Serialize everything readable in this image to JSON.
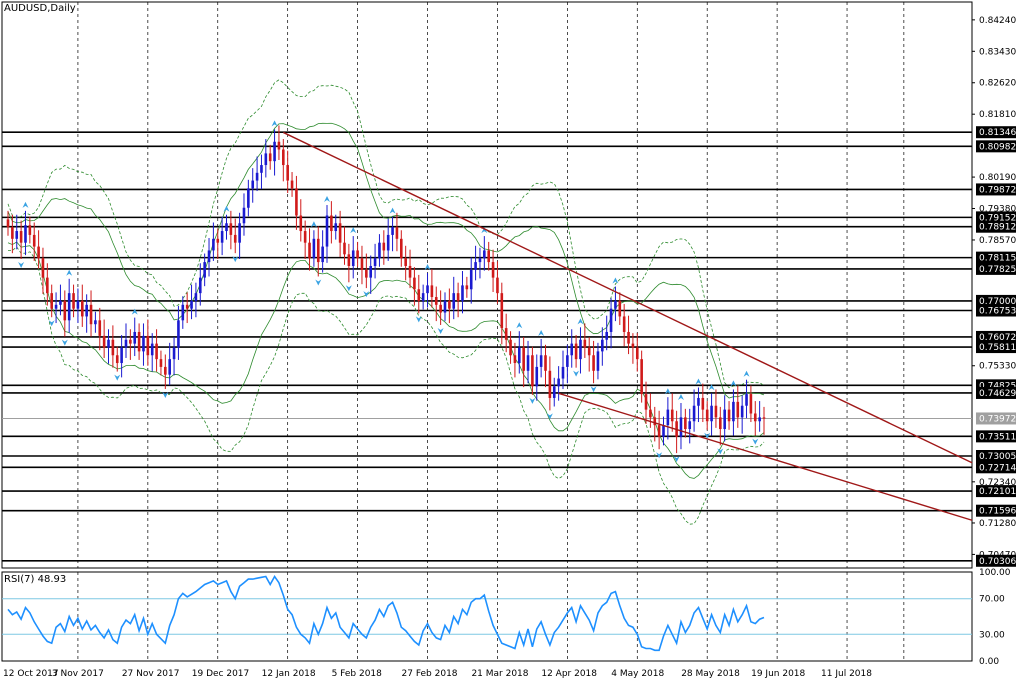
{
  "header": {
    "symbol_title": "AUDUSD,Daily"
  },
  "rsi_panel": {
    "title": "RSI(7) 48.93",
    "levels": [
      "100.00",
      "70.00",
      "30.00",
      "0.00"
    ]
  },
  "colors": {
    "bull": "#1a1ad0",
    "bear": "#d01a1a",
    "trendline": "#a01818",
    "band": "#2e8b2e",
    "rsi": "#1e90ff",
    "rsi_level": "#7ec8e3",
    "marker": "#3aa3e3"
  },
  "chart_data": [
    {
      "type": "candlestick",
      "title": "AUDUSD,Daily",
      "price_axis_labels": [
        "0.84240",
        "0.83430",
        "0.82620",
        "0.81810",
        "0.80190",
        "0.79380",
        "0.78570",
        "0.75330",
        "0.72340",
        "0.71280",
        "0.70470"
      ],
      "horizontal_levels": [
        "0.81346",
        "0.80982",
        "0.79872",
        "0.79152",
        "0.78912",
        "0.78115",
        "0.77825",
        "0.77000",
        "0.76753",
        "0.76072",
        "0.75811",
        "0.74825",
        "0.74629",
        "0.73972",
        "0.73511",
        "0.73005",
        "0.72714",
        "0.72101",
        "0.71596",
        "0.70306"
      ],
      "current_price": "0.73972",
      "date_labels": [
        "12 Oct 2017",
        "3 Nov 2017",
        "27 Nov 2017",
        "19 Dec 2017",
        "12 Jan 2018",
        "5 Feb 2018",
        "27 Feb 2018",
        "21 Mar 2018",
        "12 Apr 2018",
        "4 May 2018",
        "28 May 2018",
        "19 Jun 2018",
        "11 Jul 2018"
      ],
      "ylim": [
        0.7012,
        0.847
      ],
      "close": [
        0.789,
        0.786,
        0.788,
        0.785,
        0.7895,
        0.787,
        0.784,
        0.781,
        0.776,
        0.772,
        0.768,
        0.769,
        0.77,
        0.765,
        0.772,
        0.768,
        0.77,
        0.766,
        0.769,
        0.764,
        0.765,
        0.761,
        0.758,
        0.76,
        0.756,
        0.754,
        0.758,
        0.76,
        0.759,
        0.762,
        0.757,
        0.761,
        0.756,
        0.759,
        0.755,
        0.753,
        0.751,
        0.755,
        0.758,
        0.765,
        0.769,
        0.768,
        0.77,
        0.772,
        0.776,
        0.78,
        0.783,
        0.786,
        0.785,
        0.788,
        0.79,
        0.787,
        0.785,
        0.79,
        0.794,
        0.799,
        0.801,
        0.803,
        0.805,
        0.808,
        0.806,
        0.811,
        0.809,
        0.805,
        0.801,
        0.799,
        0.792,
        0.788,
        0.785,
        0.781,
        0.786,
        0.78,
        0.784,
        0.792,
        0.788,
        0.79,
        0.785,
        0.782,
        0.779,
        0.783,
        0.781,
        0.778,
        0.776,
        0.779,
        0.781,
        0.785,
        0.783,
        0.787,
        0.789,
        0.786,
        0.781,
        0.779,
        0.776,
        0.773,
        0.77,
        0.772,
        0.774,
        0.771,
        0.769,
        0.767,
        0.77,
        0.768,
        0.772,
        0.77,
        0.774,
        0.773,
        0.778,
        0.78,
        0.781,
        0.783,
        0.78,
        0.776,
        0.772,
        0.763,
        0.76,
        0.756,
        0.754,
        0.758,
        0.752,
        0.756,
        0.748,
        0.753,
        0.756,
        0.752,
        0.745,
        0.748,
        0.75,
        0.753,
        0.756,
        0.759,
        0.755,
        0.76,
        0.758,
        0.756,
        0.752,
        0.757,
        0.76,
        0.762,
        0.768,
        0.77,
        0.766,
        0.762,
        0.759,
        0.758,
        0.755,
        0.746,
        0.742,
        0.74,
        0.738,
        0.735,
        0.738,
        0.742,
        0.739,
        0.735,
        0.74,
        0.737,
        0.739,
        0.743,
        0.745,
        0.742,
        0.739,
        0.743,
        0.74,
        0.737,
        0.742,
        0.739,
        0.744,
        0.74,
        0.743,
        0.746,
        0.741,
        0.739,
        0.74,
        0.7397
      ]
    },
    {
      "type": "line",
      "title": "RSI(7) 48.93",
      "ylim": [
        0,
        100
      ],
      "values": [
        58,
        52,
        55,
        47,
        60,
        54,
        44,
        36,
        28,
        22,
        20,
        38,
        42,
        33,
        50,
        40,
        48,
        36,
        45,
        35,
        40,
        32,
        26,
        35,
        24,
        20,
        38,
        46,
        42,
        52,
        34,
        48,
        30,
        42,
        30,
        25,
        20,
        40,
        52,
        70,
        76,
        72,
        75,
        78,
        82,
        86,
        88,
        90,
        86,
        88,
        90,
        78,
        70,
        84,
        88,
        92,
        92,
        93,
        94,
        95,
        86,
        95,
        88,
        74,
        58,
        52,
        38,
        30,
        26,
        20,
        42,
        30,
        42,
        60,
        48,
        54,
        38,
        32,
        26,
        42,
        36,
        30,
        26,
        38,
        46,
        58,
        50,
        62,
        66,
        54,
        38,
        34,
        28,
        22,
        18,
        34,
        42,
        32,
        26,
        24,
        40,
        32,
        50,
        42,
        58,
        52,
        66,
        70,
        70,
        74,
        56,
        40,
        30,
        20,
        18,
        16,
        14,
        32,
        18,
        36,
        16,
        36,
        44,
        30,
        18,
        32,
        38,
        46,
        54,
        60,
        44,
        62,
        54,
        46,
        34,
        54,
        62,
        66,
        76,
        78,
        62,
        48,
        40,
        38,
        30,
        16,
        14,
        14,
        12,
        12,
        28,
        40,
        30,
        20,
        44,
        32,
        40,
        54,
        60,
        48,
        36,
        52,
        40,
        32,
        52,
        40,
        58,
        44,
        52,
        62,
        44,
        42,
        47,
        48.93
      ]
    }
  ]
}
